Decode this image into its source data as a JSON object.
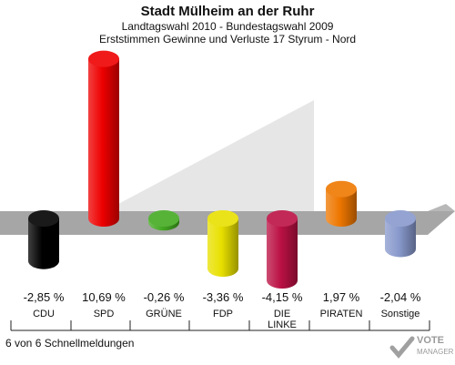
{
  "header": {
    "title": "Stadt Mülheim an der Ruhr",
    "subtitle1": "Landtagswahl 2010 - Bundestagswahl 2009",
    "subtitle2": "Erststimmen Gewinne und Verluste 17 Styrum - Nord"
  },
  "footer": {
    "reports": "6 von 6 Schnellmeldungen"
  },
  "logo": {
    "text": "VOTE",
    "subtext": "MANAGER"
  },
  "chart_data": {
    "type": "bar",
    "categories": [
      "CDU",
      "SPD",
      "GRÜNE",
      "FDP",
      "DIE LINKE",
      "PIRATEN",
      "Sonstige"
    ],
    "values": [
      -2.85,
      10.69,
      -0.26,
      -3.36,
      -4.15,
      1.97,
      -2.04
    ],
    "value_labels": [
      "-2,85 %",
      "10,69 %",
      "-0,26 %",
      "-3,36 %",
      "-4,15 %",
      "1,97 %",
      "-2,04 %"
    ],
    "colors": [
      "#000000",
      "#ee0000",
      "#44aa22",
      "#e8e000",
      "#bb1144",
      "#ee7700",
      "#8899cc"
    ]
  }
}
